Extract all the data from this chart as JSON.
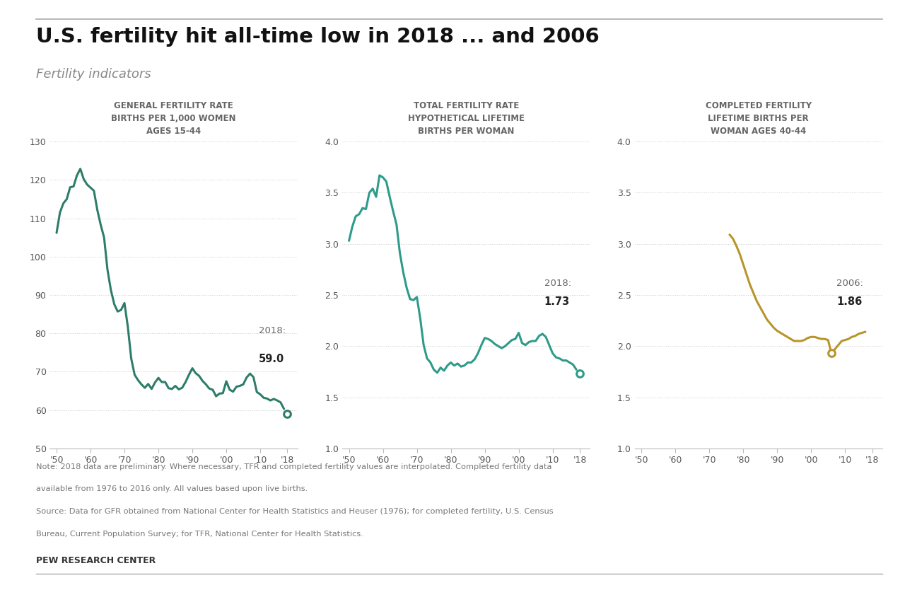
{
  "title": "U.S. fertility hit all-time low in 2018 ... and 2006",
  "subtitle": "Fertility indicators",
  "background_color": "#ffffff",
  "gfr_title_line1": "GENERAL FERTILITY RATE",
  "gfr_title_line2": "BIRTHS PER 1,000 WOMEN",
  "gfr_title_line3": "AGES 15-44",
  "gfr_color": "#2e7d6b",
  "gfr_years": [
    1950,
    1951,
    1952,
    1953,
    1954,
    1955,
    1956,
    1957,
    1958,
    1959,
    1960,
    1961,
    1962,
    1963,
    1964,
    1965,
    1966,
    1967,
    1968,
    1969,
    1970,
    1971,
    1972,
    1973,
    1974,
    1975,
    1976,
    1977,
    1978,
    1979,
    1980,
    1981,
    1982,
    1983,
    1984,
    1985,
    1986,
    1987,
    1988,
    1989,
    1990,
    1991,
    1992,
    1993,
    1994,
    1995,
    1996,
    1997,
    1998,
    1999,
    2000,
    2001,
    2002,
    2003,
    2004,
    2005,
    2006,
    2007,
    2008,
    2009,
    2010,
    2011,
    2012,
    2013,
    2014,
    2015,
    2016,
    2017,
    2018
  ],
  "gfr_values": [
    106.2,
    111.5,
    113.9,
    115.0,
    118.1,
    118.3,
    121.2,
    122.9,
    120.2,
    118.8,
    118.0,
    117.2,
    112.2,
    108.3,
    105.0,
    96.6,
    91.3,
    87.6,
    85.7,
    86.1,
    87.9,
    81.7,
    73.4,
    69.2,
    67.8,
    66.7,
    65.8,
    66.8,
    65.5,
    67.2,
    68.4,
    67.3,
    67.3,
    65.7,
    65.5,
    66.3,
    65.4,
    65.8,
    67.3,
    69.2,
    70.9,
    69.6,
    68.9,
    67.6,
    66.7,
    65.6,
    65.3,
    63.6,
    64.3,
    64.4,
    67.5,
    65.3,
    64.8,
    66.1,
    66.3,
    66.7,
    68.5,
    69.5,
    68.6,
    64.7,
    64.1,
    63.2,
    63.0,
    62.5,
    62.9,
    62.5,
    62.0,
    60.3,
    59.0
  ],
  "gfr_ylim": [
    50,
    130
  ],
  "gfr_yticks": [
    50,
    60,
    70,
    80,
    90,
    100,
    110,
    120,
    130
  ],
  "tfr_title_line1": "TOTAL FERTILITY RATE",
  "tfr_title_line2": "HYPOTHETICAL LIFETIME",
  "tfr_title_line3": "BIRTHS PER WOMAN",
  "tfr_color": "#2e9b8a",
  "tfr_years": [
    1950,
    1951,
    1952,
    1953,
    1954,
    1955,
    1956,
    1957,
    1958,
    1959,
    1960,
    1961,
    1962,
    1963,
    1964,
    1965,
    1966,
    1967,
    1968,
    1969,
    1970,
    1971,
    1972,
    1973,
    1974,
    1975,
    1976,
    1977,
    1978,
    1979,
    1980,
    1981,
    1982,
    1983,
    1984,
    1985,
    1986,
    1987,
    1988,
    1989,
    1990,
    1991,
    1992,
    1993,
    1994,
    1995,
    1996,
    1997,
    1998,
    1999,
    2000,
    2001,
    2002,
    2003,
    2004,
    2005,
    2006,
    2007,
    2008,
    2009,
    2010,
    2011,
    2012,
    2013,
    2014,
    2015,
    2016,
    2017,
    2018
  ],
  "tfr_values": [
    3.03,
    3.17,
    3.27,
    3.29,
    3.35,
    3.34,
    3.5,
    3.54,
    3.46,
    3.67,
    3.65,
    3.61,
    3.46,
    3.32,
    3.19,
    2.91,
    2.72,
    2.57,
    2.46,
    2.45,
    2.48,
    2.27,
    2.01,
    1.88,
    1.84,
    1.77,
    1.74,
    1.79,
    1.76,
    1.81,
    1.84,
    1.81,
    1.83,
    1.8,
    1.81,
    1.84,
    1.84,
    1.87,
    1.93,
    2.01,
    2.08,
    2.07,
    2.05,
    2.02,
    2.0,
    1.98,
    2.0,
    2.03,
    2.06,
    2.07,
    2.13,
    2.03,
    2.01,
    2.04,
    2.05,
    2.05,
    2.1,
    2.12,
    2.09,
    2.01,
    1.93,
    1.89,
    1.88,
    1.86,
    1.86,
    1.84,
    1.82,
    1.77,
    1.73
  ],
  "tfr_ylim": [
    1.0,
    4.0
  ],
  "tfr_yticks": [
    1.0,
    1.5,
    2.0,
    2.5,
    3.0,
    3.5,
    4.0
  ],
  "cf_title_line1": "COMPLETED FERTILITY",
  "cf_title_line2": "LIFETIME BIRTHS PER",
  "cf_title_line3": "WOMAN AGES 40-44",
  "cf_color": "#b8952a",
  "cf_years": [
    1976,
    1977,
    1978,
    1979,
    1980,
    1981,
    1982,
    1983,
    1984,
    1985,
    1986,
    1987,
    1988,
    1989,
    1990,
    1991,
    1992,
    1993,
    1994,
    1995,
    1996,
    1997,
    1998,
    1999,
    2000,
    2001,
    2002,
    2003,
    2004,
    2005,
    2006,
    2007,
    2008,
    2009,
    2010,
    2011,
    2012,
    2013,
    2014,
    2015,
    2016
  ],
  "cf_values": [
    3.09,
    3.05,
    2.98,
    2.9,
    2.8,
    2.7,
    2.6,
    2.52,
    2.44,
    2.38,
    2.32,
    2.26,
    2.22,
    2.18,
    2.15,
    2.13,
    2.11,
    2.09,
    2.07,
    2.05,
    2.05,
    2.05,
    2.06,
    2.08,
    2.09,
    2.09,
    2.08,
    2.07,
    2.07,
    2.06,
    1.93,
    1.97,
    2.01,
    2.05,
    2.06,
    2.07,
    2.09,
    2.1,
    2.12,
    2.13,
    2.14
  ],
  "cf_ylim": [
    1.0,
    4.0
  ],
  "cf_yticks": [
    1.0,
    1.5,
    2.0,
    2.5,
    3.0,
    3.5,
    4.0
  ],
  "note_line1": "Note: 2018 data are preliminary. Where necessary, TFR and completed fertility values are interpolated. Completed fertility data",
  "note_line2": "available from 1976 to 2016 only. All values based upon live births.",
  "note_line3": "Source: Data for GFR obtained from National Center for Health Statistics and Heuser (1976); for completed fertility, U.S. Census",
  "note_line4": "Bureau, Current Population Survey; for TFR, National Center for Health Statistics.",
  "source_label": "PEW RESEARCH CENTER",
  "dotted_line_color": "#cccccc",
  "grid_style": ":",
  "axis_line_color": "#bbbbbb",
  "tick_label_color": "#555555",
  "title_color": "#111111",
  "subtitle_color": "#888888",
  "note_color": "#777777",
  "chart_title_color": "#666666"
}
